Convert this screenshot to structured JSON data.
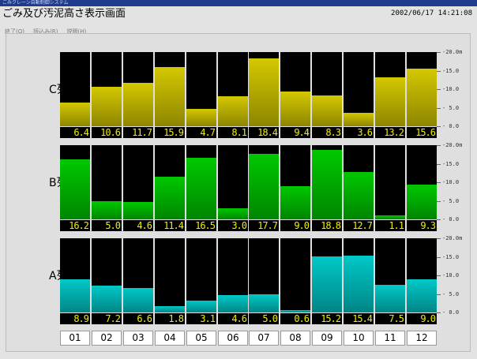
{
  "window": {
    "title": "ごみクレーン自動制御システム"
  },
  "header": {
    "title": "ごみ及び汚泥高さ表示画面",
    "datetime": "2002/06/17 14:21:08"
  },
  "menu": [
    {
      "label": "終了(Q)"
    },
    {
      "label": "読込み(R)"
    },
    {
      "label": "説明(H)"
    }
  ],
  "axis": {
    "labels": [
      "-20.0m",
      "-15.0",
      "-10.0",
      "- 5.0",
      "- 0.0"
    ]
  },
  "colors": {
    "C": "#d4c800",
    "B": "#00c800",
    "A": "#00c8c8",
    "readout_text": "#f0f000"
  },
  "rows": [
    {
      "key": "C",
      "label": "C列",
      "readouts": [
        "6.4",
        "10.6",
        "11.7",
        "15.9",
        "4.7",
        "8.1",
        "18.4",
        "9.4",
        "8.3",
        "3.6",
        "13.2",
        "15.6"
      ]
    },
    {
      "key": "B",
      "label": "B列",
      "readouts": [
        "16.2",
        "5.0",
        "4.6",
        "11.4",
        "16.5",
        "3.0",
        "17.7",
        "9.0",
        "18.8",
        "12.7",
        "1.1",
        "9.3"
      ]
    },
    {
      "key": "A",
      "label": "A列",
      "readouts": [
        "8.9",
        "7.2",
        "6.6",
        "1.8",
        "3.1",
        "4.6",
        "5.0",
        "0.6",
        "15.2",
        "15.4",
        "7.5",
        "9.0"
      ]
    }
  ],
  "columns": [
    "01",
    "02",
    "03",
    "04",
    "05",
    "06",
    "07",
    "08",
    "09",
    "10",
    "11",
    "12"
  ]
}
